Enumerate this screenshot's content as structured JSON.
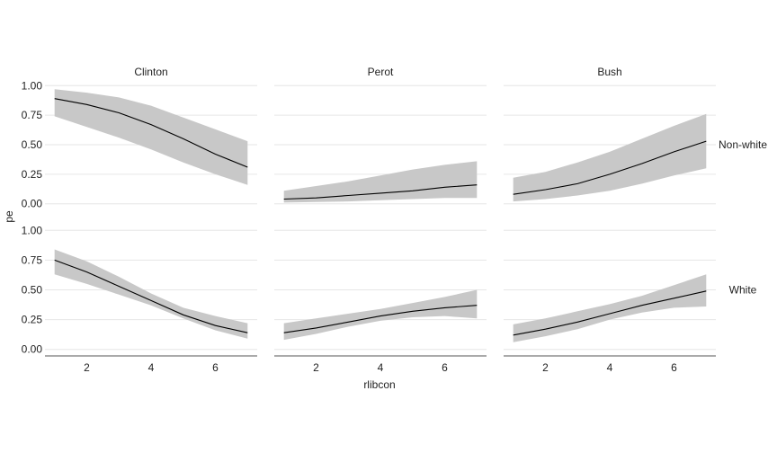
{
  "chart_data": {
    "type": "line",
    "xlabel": "rlibcon",
    "ylabel": "pe",
    "xlim": [
      0.7,
      7.3
    ],
    "ylim": [
      -0.04,
      1.04
    ],
    "x_ticks": [
      2,
      4,
      6
    ],
    "y_ticks": [
      0,
      0.25,
      0.5,
      0.75,
      1
    ],
    "y_tick_labels": [
      "0.00",
      "0.25",
      "0.50",
      "0.75",
      "1.00"
    ],
    "col_labels": [
      "Clinton",
      "Perot",
      "Bush"
    ],
    "row_labels": [
      "Non-white",
      "White"
    ],
    "grid": "horizontal",
    "colors": {
      "line": "#000000",
      "ribbon": "#c8c8c8",
      "grid": "#e6e6e6",
      "axis": "#555555"
    },
    "x": [
      1,
      2,
      3,
      4,
      5,
      6,
      7
    ],
    "panels": [
      {
        "col": "Clinton",
        "row": "Non-white",
        "y": [
          0.89,
          0.84,
          0.77,
          0.67,
          0.55,
          0.42,
          0.31
        ],
        "lower": [
          0.74,
          0.65,
          0.56,
          0.46,
          0.35,
          0.25,
          0.16
        ],
        "upper": [
          0.97,
          0.94,
          0.9,
          0.83,
          0.73,
          0.63,
          0.53
        ]
      },
      {
        "col": "Perot",
        "row": "Non-white",
        "y": [
          0.04,
          0.05,
          0.07,
          0.09,
          0.11,
          0.14,
          0.16
        ],
        "lower": [
          0.01,
          0.015,
          0.02,
          0.03,
          0.04,
          0.05,
          0.05
        ],
        "upper": [
          0.11,
          0.15,
          0.19,
          0.24,
          0.29,
          0.33,
          0.36
        ]
      },
      {
        "col": "Bush",
        "row": "Non-white",
        "y": [
          0.08,
          0.12,
          0.17,
          0.25,
          0.34,
          0.44,
          0.53
        ],
        "lower": [
          0.02,
          0.04,
          0.07,
          0.11,
          0.17,
          0.24,
          0.3
        ],
        "upper": [
          0.22,
          0.27,
          0.35,
          0.44,
          0.55,
          0.66,
          0.76
        ]
      },
      {
        "col": "Clinton",
        "row": "White",
        "y": [
          0.75,
          0.65,
          0.53,
          0.41,
          0.29,
          0.2,
          0.14
        ],
        "lower": [
          0.63,
          0.55,
          0.46,
          0.37,
          0.26,
          0.16,
          0.09
        ],
        "upper": [
          0.84,
          0.74,
          0.61,
          0.47,
          0.35,
          0.28,
          0.22
        ]
      },
      {
        "col": "Perot",
        "row": "White",
        "y": [
          0.14,
          0.18,
          0.23,
          0.28,
          0.32,
          0.35,
          0.37
        ],
        "lower": [
          0.08,
          0.13,
          0.19,
          0.24,
          0.27,
          0.28,
          0.26
        ],
        "upper": [
          0.22,
          0.26,
          0.3,
          0.34,
          0.39,
          0.44,
          0.5
        ]
      },
      {
        "col": "Bush",
        "row": "White",
        "y": [
          0.12,
          0.17,
          0.23,
          0.3,
          0.37,
          0.43,
          0.49
        ],
        "lower": [
          0.06,
          0.11,
          0.17,
          0.25,
          0.31,
          0.35,
          0.36
        ],
        "upper": [
          0.21,
          0.26,
          0.32,
          0.38,
          0.45,
          0.54,
          0.63
        ]
      }
    ]
  }
}
